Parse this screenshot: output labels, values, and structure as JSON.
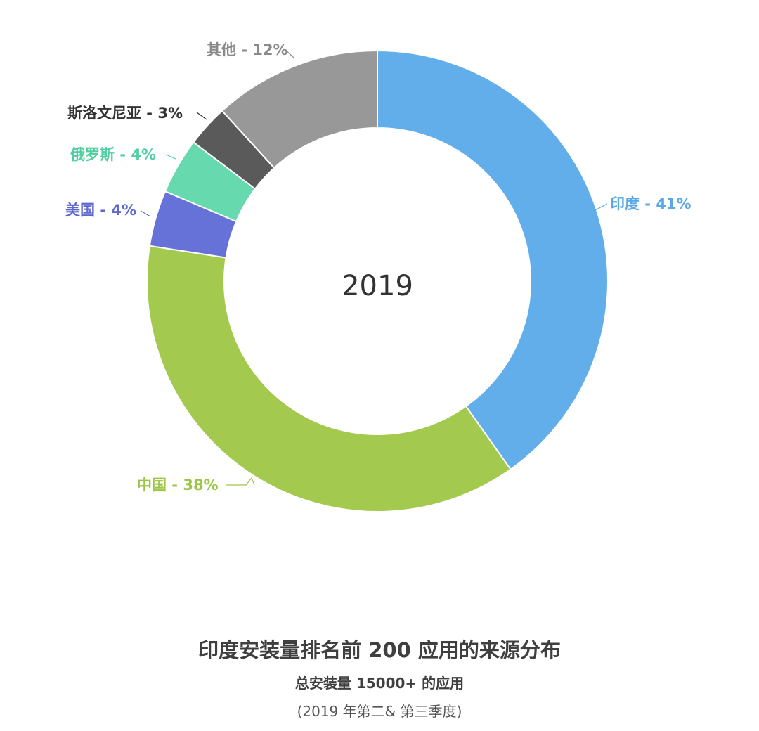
{
  "chart_data": {
    "type": "pie",
    "variant": "donut",
    "center_label": "2019",
    "title": "印度安装量排名前 200 应用的来源分布",
    "subtitle": "总安装量 15000+ 的应用",
    "note": "(2019 年第二& 第三季度)",
    "slices": [
      {
        "name": "印度",
        "value": 41,
        "label": "印度 - 41%",
        "color": "#62aeea",
        "label_color": "#5aa8e6"
      },
      {
        "name": "中国",
        "value": 38,
        "label": "中国 - 38%",
        "color": "#a3c94f",
        "label_color": "#9cc447"
      },
      {
        "name": "美国",
        "value": 4,
        "label": "美国 - 4%",
        "color": "#6672d8",
        "label_color": "#5e69cf"
      },
      {
        "name": "俄罗斯",
        "value": 4,
        "label": "俄罗斯 - 4%",
        "color": "#66d9ae",
        "label_color": "#4fcfa1"
      },
      {
        "name": "斯洛文尼亚",
        "value": 3,
        "label": "斯洛文尼亚 - 3%",
        "color": "#5a5a5a",
        "label_color": "#333333"
      },
      {
        "name": "其他",
        "value": 12,
        "label": "其他 - 12%",
        "color": "#989898",
        "label_color": "#8a8a8a"
      }
    ]
  }
}
